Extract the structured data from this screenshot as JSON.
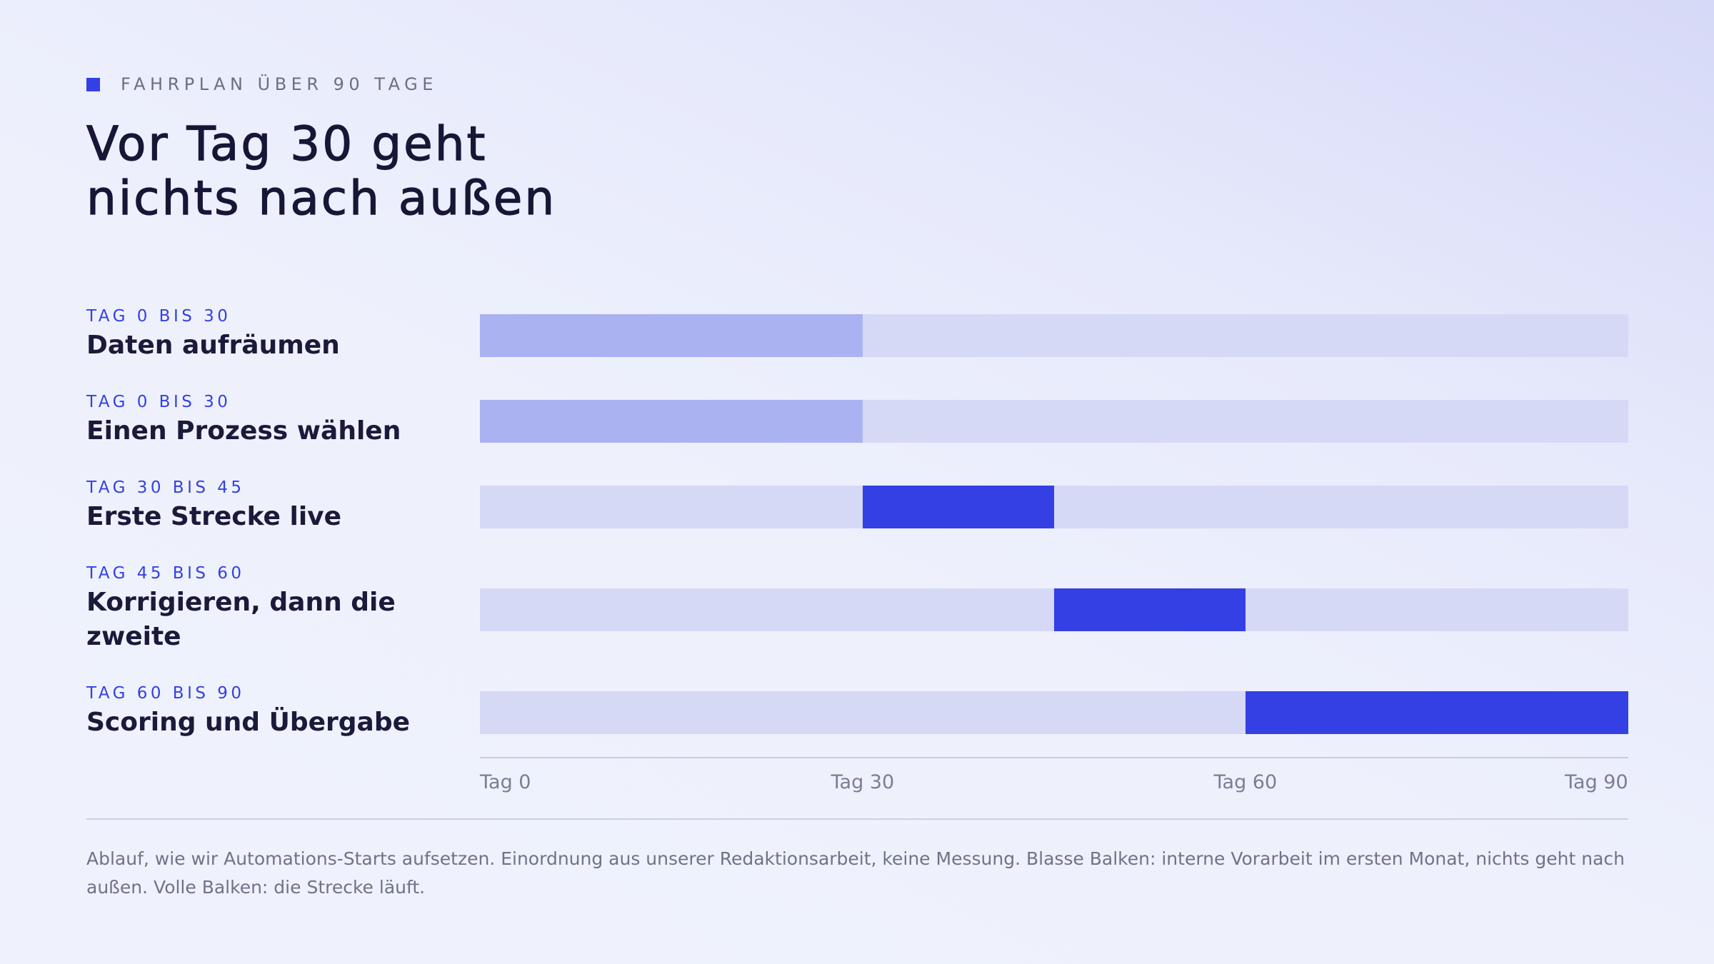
{
  "kicker": "FAHRPLAN ÜBER 90 TAGE",
  "title_lines": [
    "Vor Tag 30 geht",
    "nichts nach außen"
  ],
  "colors": {
    "accent": "#3440e4",
    "prep_bar": "#aab2f2",
    "track": "#d6d9f6",
    "text_dark": "#1a1a3a",
    "text_muted": "#6f7388"
  },
  "chart_data": {
    "type": "bar",
    "orientation": "horizontal-range",
    "title": "Vor Tag 30 geht nichts nach außen",
    "xlim": [
      0,
      90
    ],
    "ticks": [
      {
        "value": 0,
        "label": "Tag 0"
      },
      {
        "value": 30,
        "label": "Tag 30"
      },
      {
        "value": 60,
        "label": "Tag 60"
      },
      {
        "value": 90,
        "label": "Tag 90"
      }
    ],
    "rows": [
      {
        "phase": "TAG 0 BIS 30",
        "name": "Daten aufräumen",
        "start": 0,
        "end": 30,
        "kind": "prep"
      },
      {
        "phase": "TAG 0 BIS 30",
        "name": "Einen Prozess wählen",
        "start": 0,
        "end": 30,
        "kind": "prep"
      },
      {
        "phase": "TAG 30 BIS 45",
        "name": "Erste Strecke live",
        "start": 30,
        "end": 45,
        "kind": "live"
      },
      {
        "phase": "TAG 45 BIS 60",
        "name": "Korrigieren, dann die zweite",
        "start": 45,
        "end": 60,
        "kind": "live"
      },
      {
        "phase": "TAG 60 BIS 90",
        "name": "Scoring und Übergabe",
        "start": 60,
        "end": 90,
        "kind": "live"
      }
    ]
  },
  "footnote": "Ablauf, wie wir Automations-Starts aufsetzen. Einordnung aus unserer Redaktionsarbeit, keine Messung. Blasse Balken: interne Vorarbeit im ersten Monat, nichts geht nach außen. Volle Balken: die Strecke läuft."
}
